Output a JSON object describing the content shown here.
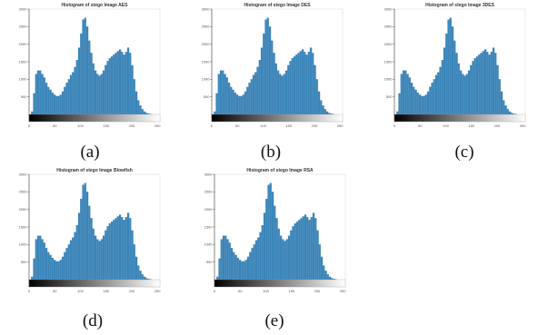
{
  "colors": {
    "bar": "#3b86bb",
    "bar_edge": "#2a6f9f"
  },
  "chart_data": [
    {
      "type": "bar",
      "panel": "a",
      "caption": "(a)",
      "title": "Histogram of stego Image AES",
      "xlim": [
        0,
        255
      ],
      "ylim": [
        0,
        3000
      ],
      "x_ticks": [
        "0",
        "50",
        "100",
        "150",
        "200",
        "250"
      ],
      "y_ticks": [
        "500",
        "1000",
        "1500",
        "2000",
        "2500",
        "3000"
      ],
      "has_colorbar": true,
      "values": [
        0,
        80,
        600,
        1150,
        1250,
        1250,
        1150,
        1050,
        900,
        780,
        700,
        620,
        560,
        520,
        520,
        560,
        650,
        780,
        900,
        1000,
        1120,
        1200,
        1350,
        1550,
        1900,
        2300,
        2700,
        2750,
        2500,
        2100,
        1750,
        1450,
        1250,
        1150,
        1100,
        1150,
        1250,
        1400,
        1520,
        1600,
        1650,
        1700,
        1750,
        1800,
        1850,
        1780,
        1700,
        1780,
        1900,
        1750,
        1400,
        1000,
        650,
        400,
        250,
        150,
        80,
        40,
        20,
        10,
        0,
        0,
        0,
        0
      ]
    },
    {
      "type": "bar",
      "panel": "b",
      "caption": "(b)",
      "title": "Histogram of stego Image DES",
      "xlim": [
        0,
        255
      ],
      "ylim": [
        0,
        3000
      ],
      "x_ticks": [
        "0",
        "50",
        "100",
        "150",
        "200",
        "250"
      ],
      "y_ticks": [
        "500",
        "1000",
        "1500",
        "2000",
        "2500",
        "3000"
      ],
      "has_colorbar": true,
      "values": [
        0,
        80,
        600,
        1150,
        1250,
        1250,
        1150,
        1050,
        900,
        780,
        700,
        620,
        560,
        520,
        520,
        560,
        650,
        780,
        900,
        1000,
        1120,
        1200,
        1350,
        1550,
        1900,
        2300,
        2700,
        2750,
        2500,
        2100,
        1750,
        1450,
        1250,
        1150,
        1100,
        1150,
        1250,
        1400,
        1520,
        1600,
        1650,
        1700,
        1750,
        1800,
        1850,
        1780,
        1700,
        1780,
        1900,
        1750,
        1400,
        1000,
        650,
        400,
        250,
        150,
        80,
        40,
        20,
        10,
        0,
        0,
        0,
        0
      ]
    },
    {
      "type": "bar",
      "panel": "c",
      "caption": "(c)",
      "title": "Histogram of stego Image 3DES",
      "xlim": [
        0,
        255
      ],
      "ylim": [
        0,
        3000
      ],
      "x_ticks": [
        "0",
        "50",
        "100",
        "150",
        "200",
        "250"
      ],
      "y_ticks": [
        "500",
        "1000",
        "1500",
        "2000",
        "2500",
        "3000"
      ],
      "has_colorbar": true,
      "values": [
        0,
        80,
        600,
        1150,
        1250,
        1250,
        1150,
        1050,
        900,
        780,
        700,
        620,
        560,
        520,
        520,
        560,
        650,
        780,
        900,
        1000,
        1120,
        1200,
        1350,
        1550,
        1900,
        2300,
        2700,
        2750,
        2500,
        2100,
        1750,
        1450,
        1250,
        1150,
        1100,
        1150,
        1250,
        1400,
        1520,
        1600,
        1650,
        1700,
        1750,
        1800,
        1850,
        1780,
        1700,
        1780,
        1900,
        1750,
        1400,
        1000,
        650,
        400,
        250,
        150,
        80,
        40,
        20,
        10,
        0,
        0,
        0,
        0
      ]
    },
    {
      "type": "bar",
      "panel": "d",
      "caption": "(d)",
      "title": "Histogram of stego Image Blowfish",
      "xlim": [
        0,
        255
      ],
      "ylim": [
        0,
        3000
      ],
      "x_ticks": [
        "0",
        "50",
        "100",
        "150",
        "200",
        "250"
      ],
      "y_ticks": [
        "500",
        "1000",
        "1500",
        "2000",
        "2500",
        "3000"
      ],
      "has_colorbar": true,
      "values": [
        0,
        80,
        600,
        1150,
        1250,
        1250,
        1150,
        1050,
        900,
        780,
        700,
        620,
        560,
        520,
        520,
        560,
        650,
        780,
        900,
        1000,
        1120,
        1200,
        1350,
        1550,
        1900,
        2300,
        2700,
        2750,
        2500,
        2100,
        1750,
        1450,
        1250,
        1150,
        1100,
        1150,
        1250,
        1400,
        1520,
        1600,
        1650,
        1700,
        1750,
        1800,
        1850,
        1780,
        1700,
        1780,
        1900,
        1750,
        1400,
        1000,
        650,
        400,
        250,
        150,
        80,
        40,
        20,
        10,
        0,
        0,
        0,
        0
      ]
    },
    {
      "type": "bar",
      "panel": "e",
      "caption": "(e)",
      "title": "Histogram of stego Image RSA",
      "xlim": [
        0,
        255
      ],
      "ylim": [
        0,
        3000
      ],
      "x_ticks": [
        "0",
        "50",
        "100",
        "150",
        "200",
        "250"
      ],
      "y_ticks": [
        "500",
        "1000",
        "1500",
        "2000",
        "2500",
        "3000"
      ],
      "has_colorbar": true,
      "values": [
        0,
        80,
        600,
        1150,
        1250,
        1250,
        1150,
        1050,
        900,
        780,
        700,
        620,
        560,
        520,
        520,
        560,
        650,
        780,
        900,
        1000,
        1120,
        1200,
        1350,
        1550,
        1900,
        2300,
        2700,
        2750,
        2500,
        2100,
        1750,
        1450,
        1250,
        1150,
        1100,
        1150,
        1250,
        1400,
        1520,
        1600,
        1650,
        1700,
        1750,
        1800,
        1850,
        1780,
        1700,
        1780,
        1900,
        1750,
        1400,
        1000,
        650,
        400,
        250,
        150,
        80,
        40,
        20,
        10,
        0,
        0,
        0,
        0
      ]
    }
  ]
}
